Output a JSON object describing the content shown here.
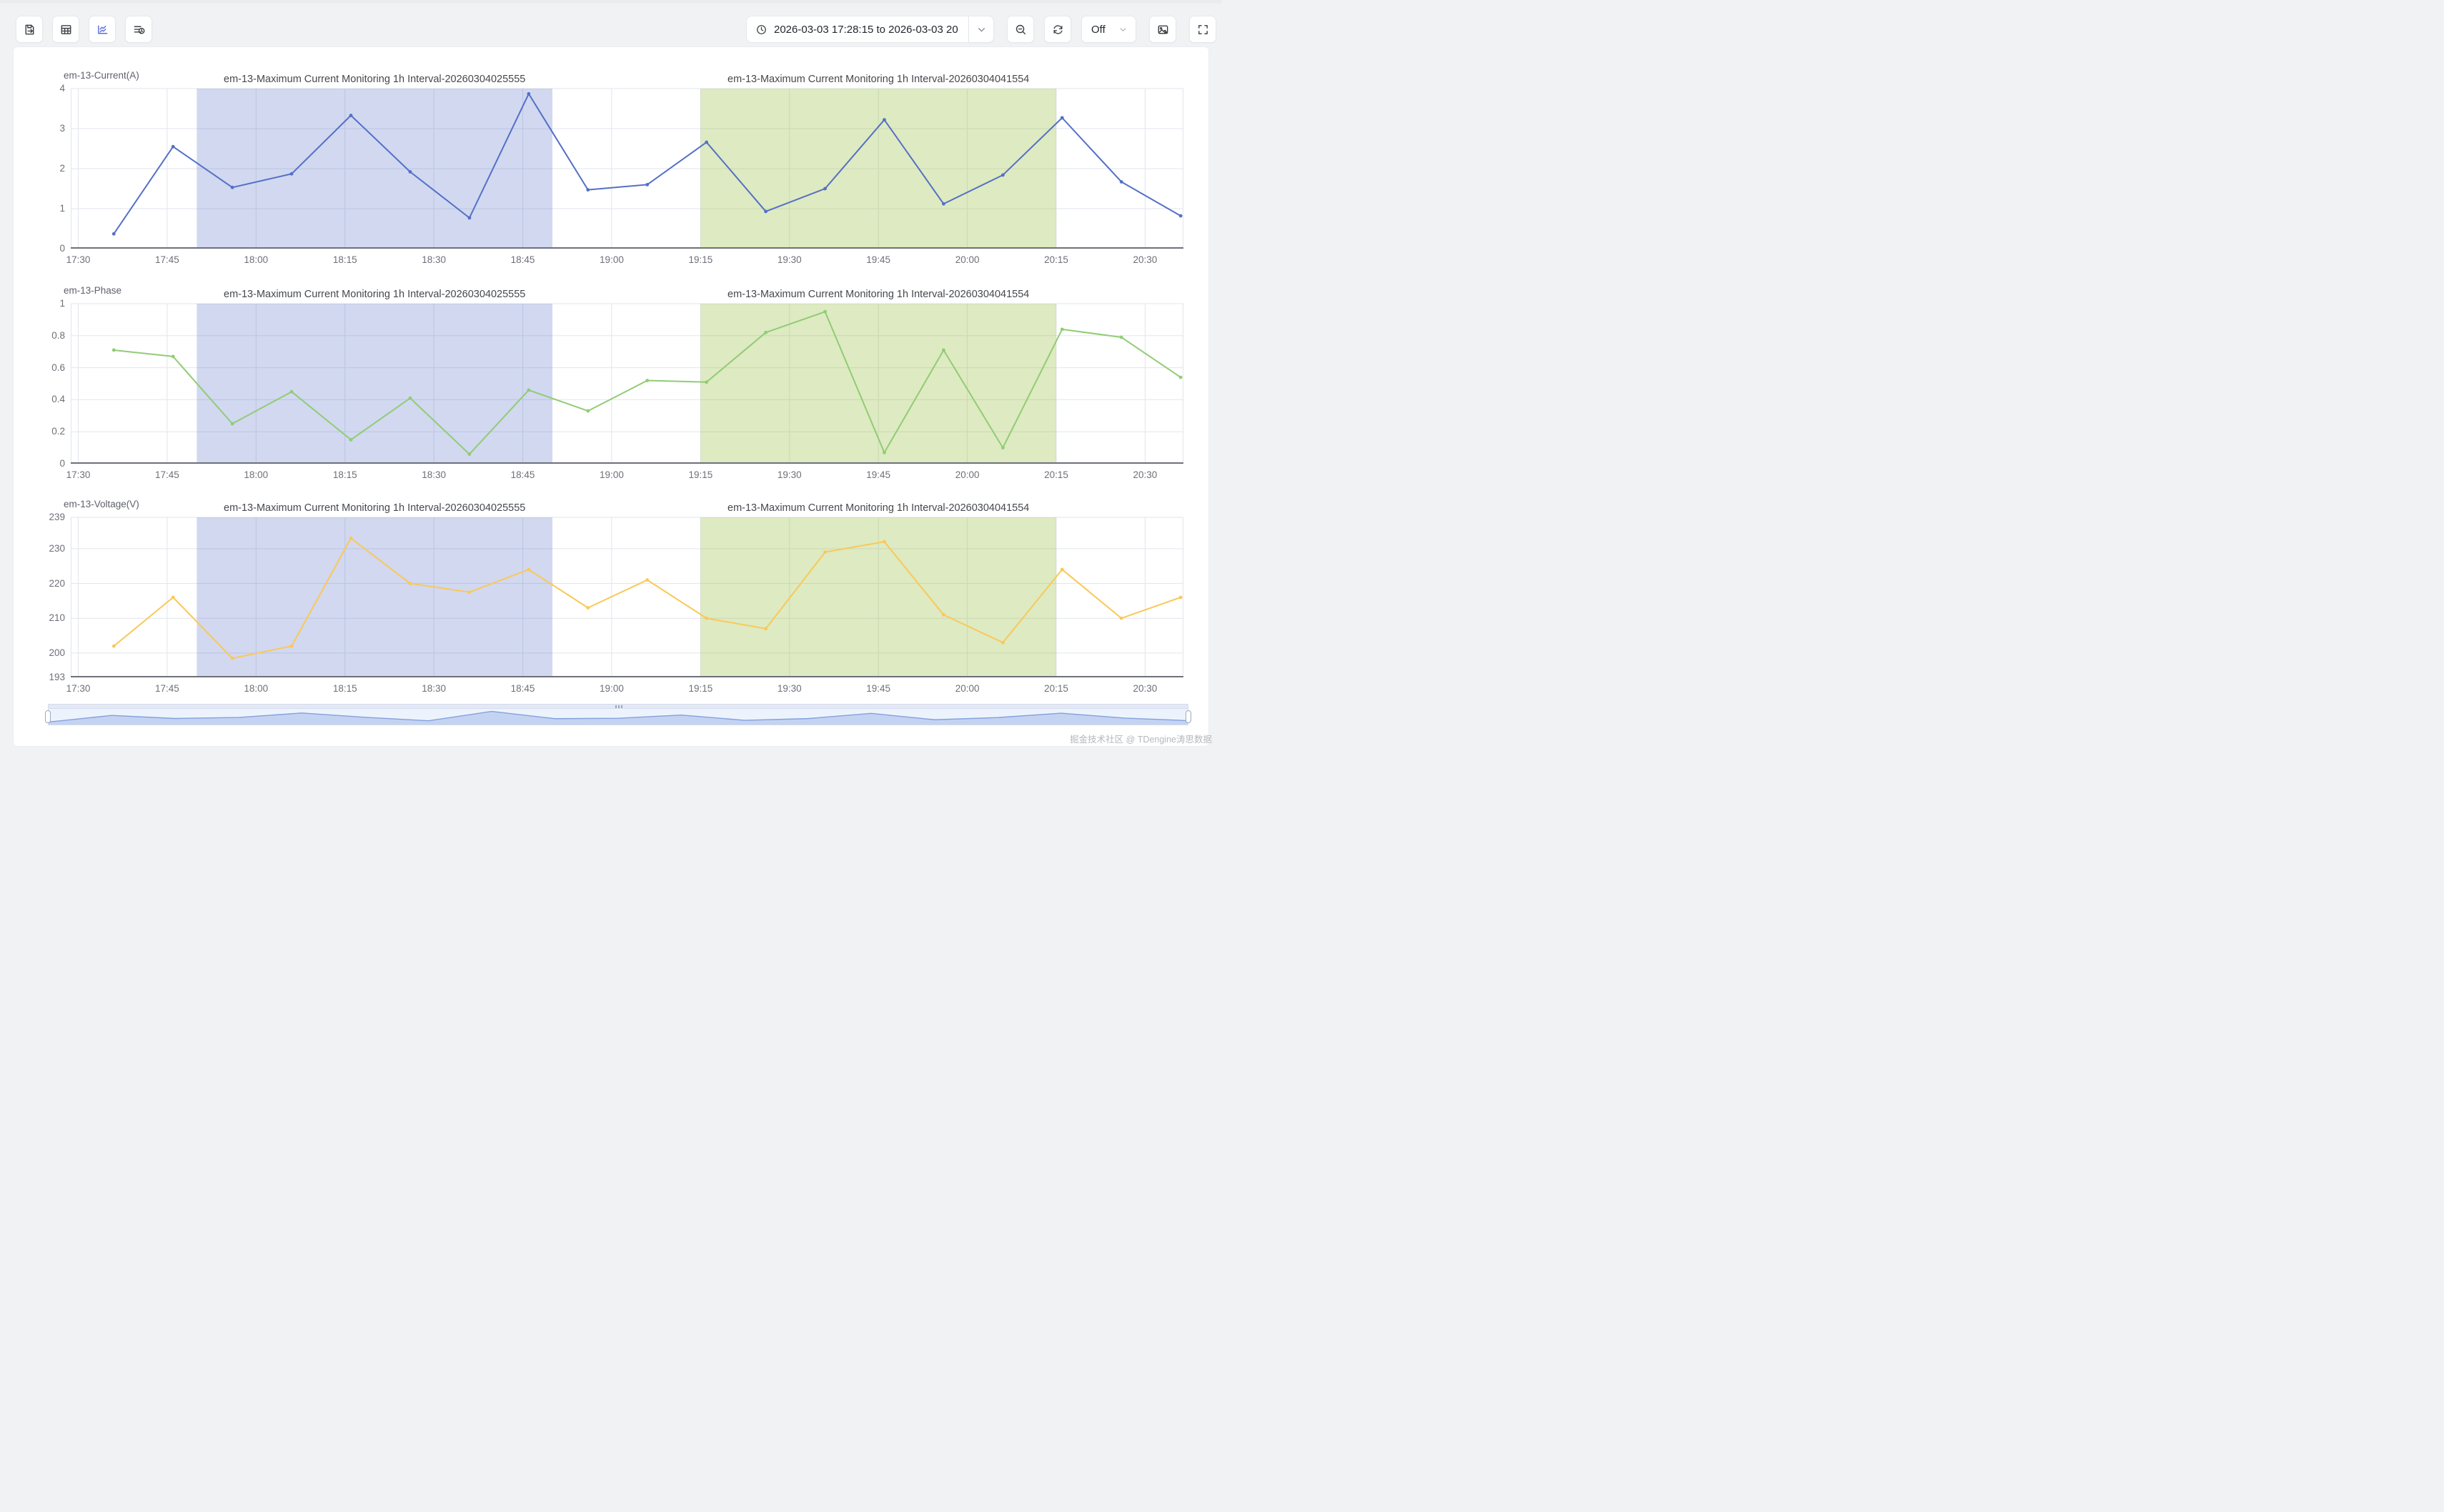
{
  "toolbar": {
    "left_buttons": [
      "export-result",
      "table-view",
      "chart-view",
      "query-history"
    ],
    "active_left_button": "chart-view",
    "time_range_value": "2026-03-03 17:28:15 to 2026-03-03 20",
    "auto_refresh_label": "Off"
  },
  "x_axis": {
    "labels": [
      "17:30",
      "17:45",
      "18:00",
      "18:15",
      "18:30",
      "18:45",
      "19:00",
      "19:15",
      "19:30",
      "19:45",
      "20:00",
      "20:15",
      "20:30"
    ]
  },
  "highlight_bands": [
    {
      "from": "17:50",
      "to": "18:50",
      "color": "rgba(84,112,198,0.27)"
    },
    {
      "from": "19:15",
      "to": "20:15",
      "color": "rgba(154,190,66,0.33)"
    }
  ],
  "chart_data": [
    {
      "type": "line",
      "name": "em-13-Current(A)",
      "color": "#5470c6",
      "titles": [
        "em-13-Maximum Current Monitoring 1h Interval-20260304025555",
        "em-13-Maximum Current Monitoring 1h Interval-20260304041554"
      ],
      "x": [
        "17:36",
        "17:46",
        "17:56",
        "18:06",
        "18:16",
        "18:26",
        "18:36",
        "18:46",
        "18:56",
        "19:06",
        "19:16",
        "19:26",
        "19:36",
        "19:46",
        "19:56",
        "20:06",
        "20:16",
        "20:26",
        "20:36"
      ],
      "values": [
        0.37,
        2.55,
        1.53,
        1.87,
        3.33,
        1.92,
        0.77,
        3.87,
        1.47,
        1.6,
        2.66,
        0.93,
        1.5,
        3.22,
        1.12,
        1.84,
        3.27,
        1.67,
        0.82
      ],
      "ylim": [
        0,
        4
      ],
      "yticks": [
        0,
        1,
        2,
        3,
        4
      ],
      "ytick_labels": [
        "0",
        "1",
        "2",
        "3",
        "4"
      ]
    },
    {
      "type": "line",
      "name": "em-13-Phase",
      "color": "#91cc75",
      "titles": [
        "em-13-Maximum Current Monitoring 1h Interval-20260304025555",
        "em-13-Maximum Current Monitoring 1h Interval-20260304041554"
      ],
      "x": [
        "17:36",
        "17:46",
        "17:56",
        "18:06",
        "18:16",
        "18:26",
        "18:36",
        "18:46",
        "18:56",
        "19:06",
        "19:16",
        "19:26",
        "19:36",
        "19:46",
        "19:56",
        "20:06",
        "20:16",
        "20:26",
        "20:36"
      ],
      "values": [
        0.71,
        0.67,
        0.25,
        0.45,
        0.15,
        0.41,
        0.06,
        0.46,
        0.33,
        0.52,
        0.51,
        0.82,
        0.95,
        0.07,
        0.71,
        0.1,
        0.84,
        0.79,
        0.54
      ],
      "ylim": [
        0,
        1
      ],
      "yticks": [
        0,
        0.2,
        0.4,
        0.6,
        0.8,
        1
      ],
      "ytick_labels": [
        "0",
        "0.2",
        "0.4",
        "0.6",
        "0.8",
        "1"
      ]
    },
    {
      "type": "line",
      "name": "em-13-Voltage(V)",
      "color": "#fac858",
      "titles": [
        "em-13-Maximum Current Monitoring 1h Interval-20260304025555",
        "em-13-Maximum Current Monitoring 1h Interval-20260304041554"
      ],
      "x": [
        "17:36",
        "17:46",
        "17:56",
        "18:06",
        "18:16",
        "18:26",
        "18:36",
        "18:46",
        "18:56",
        "19:06",
        "19:16",
        "19:26",
        "19:36",
        "19:46",
        "19:56",
        "20:06",
        "20:16",
        "20:26",
        "20:36"
      ],
      "values": [
        202,
        216,
        198.5,
        202,
        233,
        220,
        217.5,
        224,
        213,
        221,
        210,
        207,
        229,
        232,
        211,
        203,
        224,
        210,
        216
      ],
      "ylim": [
        193,
        239
      ],
      "yticks": [
        193,
        200,
        210,
        220,
        230,
        239
      ],
      "ytick_labels": [
        "193",
        "200",
        "210",
        "220",
        "230",
        "239"
      ]
    }
  ],
  "brush": {
    "series_index": 0
  },
  "watermark": "掘金技术社区 @ TDengine涛思数据"
}
